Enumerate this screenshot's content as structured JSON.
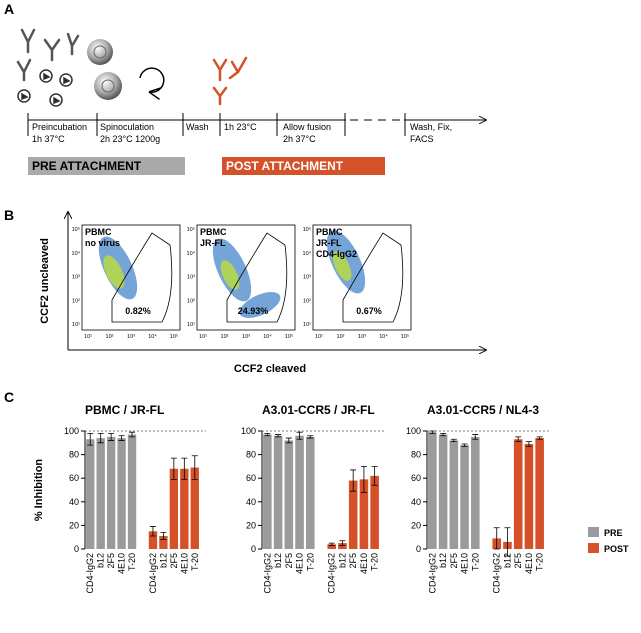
{
  "panel_labels": [
    "A",
    "B",
    "C"
  ],
  "timeline": {
    "steps": [
      [
        "Preincubation",
        "1h 37°C"
      ],
      [
        "Spinoculation",
        "2h 23°C 1200g"
      ],
      [
        "Wash"
      ],
      [
        "1h 23°C"
      ],
      [
        "Allow fusion",
        "2h 37°C"
      ],
      [
        "Wash, Fix,",
        "FACS"
      ]
    ],
    "pre": "PRE ATTACHMENT",
    "post": "POST ATTACHMENT"
  },
  "flow": {
    "x_label": "CCF2 cleaved",
    "y_label": "CCF2 uncleaved",
    "tick_labels": [
      "10¹",
      "10²",
      "10³",
      "10⁴",
      "10⁵"
    ],
    "plots": [
      {
        "lines": [
          "PBMC",
          "no virus"
        ],
        "gate": "0.82%"
      },
      {
        "lines": [
          "PBMC",
          "JR-FL"
        ],
        "gate": "24.93%"
      },
      {
        "lines": [
          "PBMC",
          "JR-FL",
          "CD4-IgG2"
        ],
        "gate": "0.67%"
      }
    ]
  },
  "chart_data": [
    {
      "type": "bar",
      "title": "PBMC / JR-FL",
      "y_label": "% Inhibition",
      "categories": [
        "CD4-IgG2",
        "b12",
        "2F5",
        "4E10",
        "T-20",
        "CD4-IgG2",
        "b12",
        "2F5",
        "4E10",
        "T-20"
      ],
      "series": [
        {
          "color": "#9a9b9d",
          "values": [
            93,
            94,
            95,
            94,
            97,
            null,
            null,
            null,
            null,
            null
          ],
          "errors": [
            5,
            4,
            3,
            2,
            2,
            null,
            null,
            null,
            null,
            null
          ]
        },
        {
          "color": "#d4512a",
          "values": [
            null,
            null,
            null,
            null,
            null,
            15,
            11,
            68,
            68,
            69
          ],
          "errors": [
            null,
            null,
            null,
            null,
            null,
            4,
            3,
            9,
            9,
            10
          ]
        }
      ],
      "ylim": [
        0,
        100
      ],
      "yticks": [
        0,
        20,
        40,
        60,
        80,
        100
      ]
    },
    {
      "type": "bar",
      "title": "A3.01-CCR5 / JR-FL",
      "categories": [
        "CD4-IgG2",
        "b12",
        "2F5",
        "4E10",
        "T-20",
        "CD4-IgG2",
        "b12",
        "2F5",
        "4E10",
        "T-20"
      ],
      "series": [
        {
          "color": "#9a9b9d",
          "values": [
            97,
            96,
            92,
            96,
            95,
            null,
            null,
            null,
            null,
            null
          ],
          "errors": [
            1,
            1,
            2,
            3,
            1,
            null,
            null,
            null,
            null,
            null
          ]
        },
        {
          "color": "#d4512a",
          "values": [
            null,
            null,
            null,
            null,
            null,
            4,
            5,
            58,
            59,
            62
          ],
          "errors": [
            null,
            null,
            null,
            null,
            null,
            1,
            2,
            9,
            11,
            8
          ]
        }
      ],
      "ylim": [
        0,
        100
      ],
      "yticks": [
        0,
        20,
        40,
        60,
        80,
        100
      ]
    },
    {
      "type": "bar",
      "title": "A3.01-CCR5 / NL4-3",
      "legend": "right",
      "categories": [
        "CD4-IgG2",
        "b12",
        "2F5",
        "4E10",
        "T-20",
        "CD4-IgG2",
        "b12",
        "2F5",
        "4E10",
        "T-20"
      ],
      "series": [
        {
          "name": "PRE",
          "color": "#9a9b9d",
          "values": [
            99,
            97,
            92,
            88,
            95,
            null,
            null,
            null,
            null,
            null
          ],
          "errors": [
            1,
            1,
            1,
            1,
            2,
            null,
            null,
            null,
            null,
            null
          ]
        },
        {
          "name": "POST",
          "color": "#d4512a",
          "values": [
            null,
            null,
            null,
            null,
            null,
            9,
            6,
            93,
            89,
            94
          ],
          "errors": [
            null,
            null,
            null,
            null,
            null,
            9,
            12,
            2,
            2,
            1
          ]
        }
      ],
      "ylim": [
        0,
        100
      ],
      "yticks": [
        0,
        20,
        40,
        60,
        80,
        100
      ]
    }
  ]
}
